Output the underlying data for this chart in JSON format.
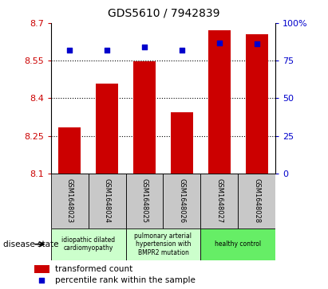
{
  "title": "GDS5610 / 7942839",
  "samples": [
    "GSM1648023",
    "GSM1648024",
    "GSM1648025",
    "GSM1648026",
    "GSM1648027",
    "GSM1648028"
  ],
  "bar_values": [
    8.285,
    8.46,
    8.548,
    8.345,
    8.67,
    8.655
  ],
  "percentile_values": [
    82,
    82,
    84,
    82,
    87,
    86
  ],
  "y_min": 8.1,
  "y_max": 8.7,
  "y_ticks": [
    8.1,
    8.25,
    8.4,
    8.55,
    8.7
  ],
  "y_right_ticks": [
    0,
    25,
    50,
    75,
    100
  ],
  "bar_color": "#cc0000",
  "dot_color": "#0000cc",
  "bg_color": "#ffffff",
  "tick_label_color_left": "#cc0000",
  "tick_label_color_right": "#0000cc",
  "disease_groups": [
    {
      "label": "idiopathic dilated\ncardiomyopathy",
      "span": [
        0,
        2
      ],
      "color": "#ccffcc"
    },
    {
      "label": "pulmonary arterial\nhypertension with\nBMPR2 mutation",
      "span": [
        2,
        2
      ],
      "color": "#ccffcc"
    },
    {
      "label": "healthy control",
      "span": [
        4,
        2
      ],
      "color": "#66ee66"
    }
  ],
  "legend_bar_label": "transformed count",
  "legend_dot_label": "percentile rank within the sample",
  "disease_state_label": "disease state",
  "sample_box_color": "#c8c8c8",
  "panel_bg": "#ffffff",
  "title_fontsize": 10,
  "axis_fontsize": 8,
  "label_fontsize": 6,
  "legend_fontsize": 7.5
}
